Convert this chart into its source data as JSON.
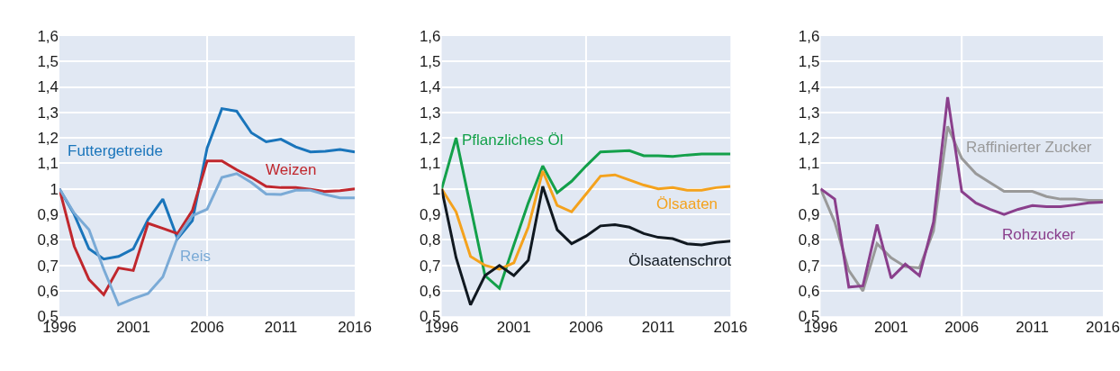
{
  "chart_data": [
    {
      "type": "line",
      "x": [
        1996,
        1997,
        1998,
        1999,
        2000,
        2001,
        2002,
        2003,
        2004,
        2005,
        2006,
        2007,
        2008,
        2009,
        2010,
        2011,
        2012,
        2013,
        2014,
        2015,
        2016
      ],
      "series": [
        {
          "name": "Futtergetreide",
          "color": "#1a75bb",
          "values": [
            1.0,
            0.9,
            0.765,
            0.725,
            0.735,
            0.765,
            0.88,
            0.96,
            0.805,
            0.875,
            1.16,
            1.315,
            1.305,
            1.22,
            1.185,
            1.195,
            1.165,
            1.145,
            1.148,
            1.155,
            1.145
          ]
        },
        {
          "name": "Weizen",
          "color": "#c0272d",
          "values": [
            1.0,
            0.775,
            0.645,
            0.585,
            0.69,
            0.68,
            0.865,
            0.845,
            0.825,
            0.915,
            1.11,
            1.11,
            1.075,
            1.045,
            1.01,
            1.005,
            1.005,
            0.998,
            0.99,
            0.993,
            1.0
          ]
        },
        {
          "name": "Reis",
          "color": "#7aaad6",
          "values": [
            1.0,
            0.905,
            0.84,
            0.685,
            0.545,
            0.57,
            0.59,
            0.655,
            0.81,
            0.895,
            0.92,
            1.045,
            1.06,
            1.025,
            0.98,
            0.978,
            0.995,
            0.995,
            0.978,
            0.965,
            0.965
          ]
        }
      ],
      "xlim": [
        1996,
        2016
      ],
      "xticks": [
        1996,
        2001,
        2006,
        2011,
        2016
      ],
      "ylim": [
        0.5,
        1.6
      ],
      "yticks": [
        {
          "value": 0.5,
          "label": "0,5"
        },
        {
          "value": 0.6,
          "label": "0,6"
        },
        {
          "value": 0.7,
          "label": "0,7"
        },
        {
          "value": 0.8,
          "label": "0,8"
        },
        {
          "value": 0.9,
          "label": "0,9"
        },
        1,
        {
          "value": 1.1,
          "label": "1,1"
        },
        {
          "value": 1.2,
          "label": "1,2"
        },
        {
          "value": 1.3,
          "label": "1,3"
        },
        {
          "value": 1.4,
          "label": "1,4"
        },
        {
          "value": 1.5,
          "label": "1,5"
        },
        {
          "value": 1.6,
          "label": "1,6"
        }
      ],
      "grid": "y",
      "ref_lines": [
        {
          "axis": "x",
          "value": 2006,
          "color": "#ffffff"
        }
      ],
      "legend": false
    },
    {
      "type": "line",
      "x": [
        1996,
        1997,
        1998,
        1999,
        2000,
        2001,
        2002,
        2003,
        2004,
        2005,
        2006,
        2007,
        2008,
        2009,
        2010,
        2011,
        2012,
        2013,
        2014,
        2015,
        2016
      ],
      "series": [
        {
          "name": "Pflanzliches Öl",
          "color": "#13a04a",
          "values": [
            1.0,
            1.2,
            0.93,
            0.66,
            0.61,
            0.78,
            0.945,
            1.09,
            0.985,
            1.03,
            1.09,
            1.145,
            1.148,
            1.15,
            1.13,
            1.13,
            1.127,
            1.133,
            1.137,
            1.137,
            1.137
          ]
        },
        {
          "name": "Ölsaaten",
          "color": "#f4a21d",
          "values": [
            1.0,
            0.91,
            0.735,
            0.7,
            0.685,
            0.71,
            0.85,
            1.07,
            0.935,
            0.91,
            0.98,
            1.05,
            1.055,
            1.035,
            1.015,
            1.0,
            1.005,
            0.995,
            0.995,
            1.005,
            1.01
          ]
        },
        {
          "name": "Ölsaatenschrot",
          "color": "#101820",
          "values": [
            1.0,
            0.73,
            0.545,
            0.66,
            0.7,
            0.66,
            0.72,
            1.01,
            0.84,
            0.785,
            0.815,
            0.855,
            0.86,
            0.85,
            0.825,
            0.81,
            0.805,
            0.785,
            0.78,
            0.79,
            0.795
          ]
        }
      ],
      "xlim": [
        1996,
        2016
      ],
      "xticks": [
        1996,
        2001,
        2006,
        2011,
        2016
      ],
      "ylim": [
        0.5,
        1.6
      ],
      "yticks": [
        {
          "value": 0.5,
          "label": "0,5"
        },
        {
          "value": 0.6,
          "label": "0,6"
        },
        {
          "value": 0.7,
          "label": "0,7"
        },
        {
          "value": 0.8,
          "label": "0,8"
        },
        {
          "value": 0.9,
          "label": "0,9"
        },
        1,
        {
          "value": 1.1,
          "label": "1,1"
        },
        {
          "value": 1.2,
          "label": "1,2"
        },
        {
          "value": 1.3,
          "label": "1,3"
        },
        {
          "value": 1.4,
          "label": "1,4"
        },
        {
          "value": 1.5,
          "label": "1,5"
        },
        {
          "value": 1.6,
          "label": "1,6"
        }
      ],
      "grid": "y",
      "ref_lines": [
        {
          "axis": "x",
          "value": 2006,
          "color": "#ffffff"
        }
      ],
      "legend": false
    },
    {
      "type": "line",
      "x": [
        1996,
        1997,
        1998,
        1999,
        2000,
        2001,
        2002,
        2003,
        2004,
        2005,
        2006,
        2007,
        2008,
        2009,
        2010,
        2011,
        2012,
        2013,
        2014,
        2015,
        2016
      ],
      "series": [
        {
          "name": "Raffinierter Zucker",
          "color": "#999999",
          "values": [
            1.0,
            0.87,
            0.68,
            0.6,
            0.785,
            0.73,
            0.695,
            0.69,
            0.835,
            1.245,
            1.12,
            1.06,
            1.025,
            0.99,
            0.99,
            0.99,
            0.97,
            0.96,
            0.96,
            0.955,
            0.955
          ]
        },
        {
          "name": "Rohzucker",
          "color": "#8a3f8c",
          "values": [
            1.0,
            0.96,
            0.615,
            0.62,
            0.86,
            0.65,
            0.705,
            0.66,
            0.87,
            1.36,
            0.99,
            0.945,
            0.92,
            0.9,
            0.92,
            0.935,
            0.93,
            0.93,
            0.937,
            0.945,
            0.948
          ]
        }
      ],
      "xlim": [
        1996,
        2016
      ],
      "xticks": [
        1996,
        2001,
        2006,
        2011,
        2016
      ],
      "ylim": [
        0.5,
        1.6
      ],
      "yticks": [
        {
          "value": 0.5,
          "label": "0,5"
        },
        {
          "value": 0.6,
          "label": "0,6"
        },
        {
          "value": 0.7,
          "label": "0,7"
        },
        {
          "value": 0.8,
          "label": "0,8"
        },
        {
          "value": 0.9,
          "label": "0,9"
        },
        1,
        {
          "value": 1.1,
          "label": "1,1"
        },
        {
          "value": 1.2,
          "label": "1,2"
        },
        {
          "value": 1.3,
          "label": "1,3"
        },
        {
          "value": 1.4,
          "label": "1,4"
        },
        {
          "value": 1.5,
          "label": "1,5"
        },
        {
          "value": 1.6,
          "label": "1,6"
        }
      ],
      "grid": "y",
      "ref_lines": [
        {
          "axis": "x",
          "value": 2006,
          "color": "#ffffff"
        }
      ],
      "legend": false
    }
  ]
}
